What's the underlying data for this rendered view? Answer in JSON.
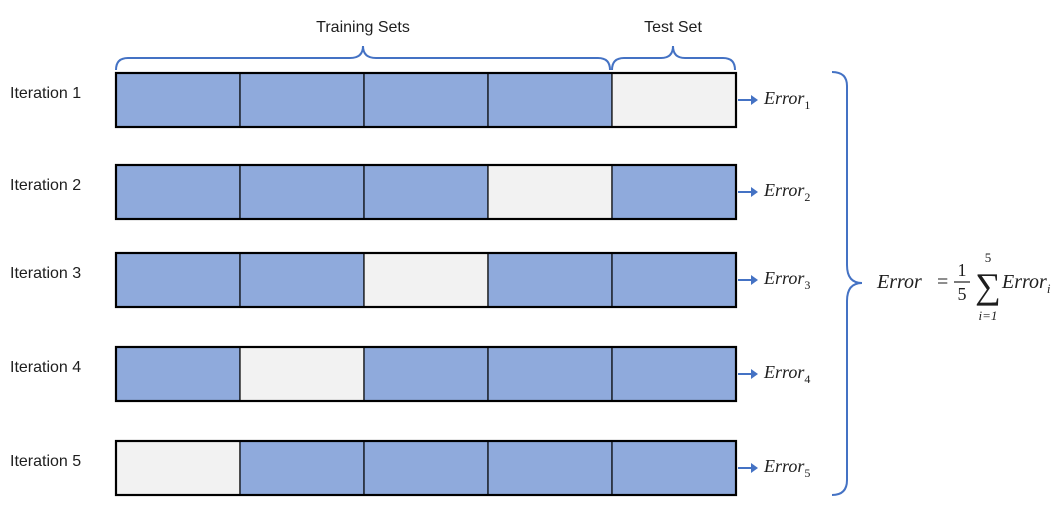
{
  "header": {
    "training_label": "Training Sets",
    "test_label": "Test Set"
  },
  "iterations": [
    {
      "label": "Iteration 1",
      "test_fold": 5,
      "error_base": "Error",
      "error_sub": "1"
    },
    {
      "label": "Iteration 2",
      "test_fold": 4,
      "error_base": "Error",
      "error_sub": "2"
    },
    {
      "label": "Iteration 3",
      "test_fold": 3,
      "error_base": "Error",
      "error_sub": "3"
    },
    {
      "label": "Iteration 4",
      "test_fold": 2,
      "error_base": "Error",
      "error_sub": "4"
    },
    {
      "label": "Iteration 5",
      "test_fold": 1,
      "error_base": "Error",
      "error_sub": "5"
    }
  ],
  "fold_count": 5,
  "formula": {
    "lhs": "Error",
    "equals": "=",
    "frac_num": "1",
    "frac_den": "5",
    "sum_symbol": "∑",
    "sum_upper": "5",
    "sum_lower": "i=1",
    "term_base": "Error",
    "term_sub": "i"
  },
  "colors": {
    "train_fill": "#8faadc",
    "test_fill": "#f2f2f2",
    "cell_stroke": "#000000",
    "bracket": "#4472c4",
    "arrow": "#4472c4",
    "text": "#1e1e1e"
  }
}
